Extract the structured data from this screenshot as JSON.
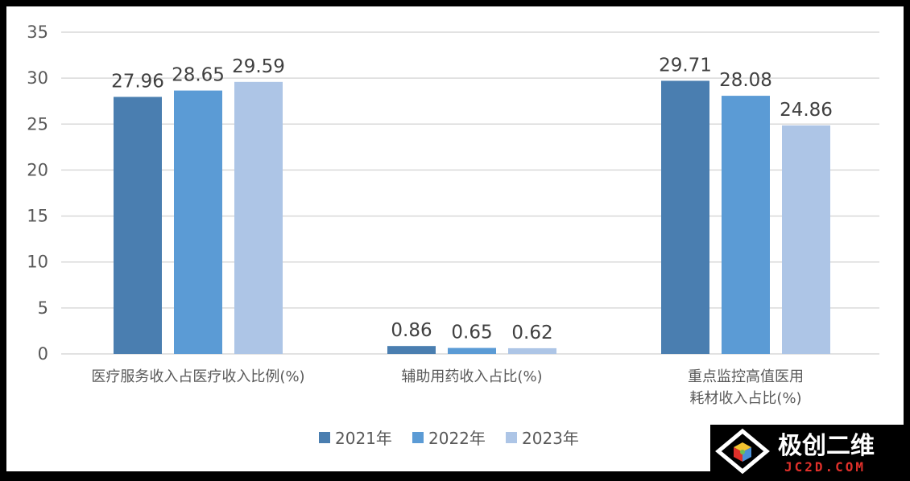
{
  "chart_data": {
    "type": "bar",
    "categories": [
      "医疗服务收入占医疗收入比例(%)",
      "辅助用药收入占比(%)",
      "重点监控高值医用耗材收入占比(%)"
    ],
    "category_lines": [
      [
        "医疗服务收入占医疗收入比例(%)"
      ],
      [
        "辅助用药收入占比(%)"
      ],
      [
        "重点监控高值医用",
        "耗材收入占比(%)"
      ]
    ],
    "series": [
      {
        "name": "2021年",
        "values": [
          27.96,
          0.86,
          29.71
        ],
        "color": "#4a7eb0"
      },
      {
        "name": "2022年",
        "values": [
          28.65,
          0.65,
          28.08
        ],
        "color": "#5b9bd5"
      },
      {
        "name": "2023年",
        "values": [
          29.59,
          0.62,
          24.86
        ],
        "color": "#adc5e6"
      }
    ],
    "value_labels": [
      [
        "27.96",
        "28.65",
        "29.59"
      ],
      [
        "0.86",
        "0.65",
        "0.62"
      ],
      [
        "29.71",
        "28.08",
        "24.86"
      ]
    ],
    "ylim": [
      0,
      35
    ],
    "yticks": [
      "0",
      "5",
      "10",
      "15",
      "20",
      "25",
      "30",
      "35"
    ],
    "grid": true,
    "legend_position": "bottom",
    "gridline_color": "#d9d9d9",
    "text_color": "#595959"
  },
  "watermark": {
    "text_cn": "极创二维",
    "text_en": "JC2D.COM",
    "text_en_color": "#e0302a",
    "logo_colors": [
      "#f2c230",
      "#e0302a",
      "#4a90d9",
      "#6bbf59"
    ]
  }
}
